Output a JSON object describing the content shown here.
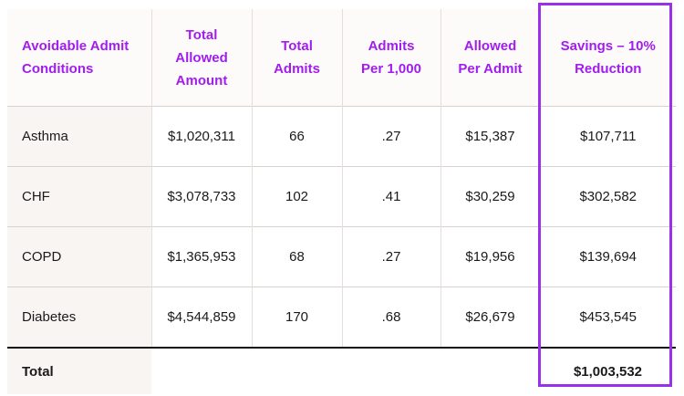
{
  "table": {
    "headers": [
      "Avoidable Admit\nConditions",
      "Total\nAllowed\nAmount",
      "Total\nAdmits",
      "Admits\nPer 1,000",
      "Allowed\nPer Admit",
      "Savings – 10%\nReduction"
    ],
    "rows": [
      [
        "Asthma",
        "$1,020,311",
        "66",
        ".27",
        "$15,387",
        "$107,711"
      ],
      [
        "CHF",
        "$3,078,733",
        "102",
        ".41",
        "$30,259",
        "$302,582"
      ],
      [
        "COPD",
        "$1,365,953",
        "68",
        ".27",
        "$19,956",
        "$139,694"
      ],
      [
        "Diabetes",
        "$4,544,859",
        "170",
        ".68",
        "$26,679",
        "$453,545"
      ]
    ],
    "total": {
      "label": "Total",
      "savings": "$1,003,532"
    }
  },
  "colors": {
    "header_text": "#a21cf0",
    "highlight_border": "#9b30ea",
    "label_background": "#f9f5f3"
  }
}
